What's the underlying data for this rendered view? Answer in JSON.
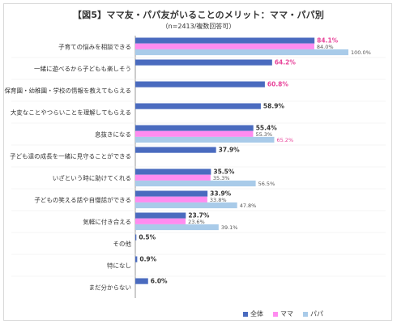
{
  "colors": {
    "overall": "#4a6bbf",
    "mama": "#ff8cf0",
    "papa": "#a9cbe9",
    "highlight": "#e8449a",
    "axis": "#999999"
  },
  "chart_data": {
    "type": "bar",
    "orientation": "horizontal",
    "title": "【図5】ママ友・パパ友がいることのメリット：ママ・パパ別",
    "subtitle": "（n=2413/複数回答可）",
    "xlim": [
      0,
      100
    ],
    "categories": [
      "子育ての悩みを相談できる",
      "一緒に遊べるから子どもも楽しそう",
      "保育園・幼稚園・学校の情報を教えてもらえる",
      "大変なことやつらいことを理解してもらえる",
      "息抜きになる",
      "子ども達の成長を一緒に見守ることができる",
      "いざという時に助けてくれる",
      "子どもの笑える話や自慢話ができる",
      "気軽に付き合える",
      "その他",
      "特になし",
      "まだ分からない"
    ],
    "series": [
      {
        "name": "全体",
        "values": [
          84.1,
          64.2,
          60.8,
          58.9,
          55.4,
          37.9,
          35.5,
          33.9,
          23.7,
          0.5,
          0.9,
          6.0
        ]
      },
      {
        "name": "ママ",
        "values": [
          84.0,
          null,
          null,
          null,
          55.3,
          null,
          35.3,
          33.8,
          23.6,
          null,
          null,
          null
        ]
      },
      {
        "name": "パパ",
        "values": [
          100.0,
          null,
          null,
          null,
          65.2,
          null,
          56.5,
          47.8,
          39.1,
          null,
          null,
          null
        ]
      }
    ],
    "data_labels": [
      [
        "84.1%",
        "84.0%",
        "100.0%"
      ],
      [
        "64.2%",
        "",
        ""
      ],
      [
        "60.8%",
        "",
        ""
      ],
      [
        "58.9%",
        "",
        ""
      ],
      [
        "55.4%",
        "55.3%",
        "65.2%"
      ],
      [
        "37.9%",
        "",
        ""
      ],
      [
        "35.5%",
        "35.3%",
        "56.5%"
      ],
      [
        "33.9%",
        "33.8%",
        "47.8%"
      ],
      [
        "23.7%",
        "23.6%",
        "39.1%"
      ],
      [
        "0.5%",
        "",
        ""
      ],
      [
        "0.9%",
        "",
        ""
      ],
      [
        "6.0%",
        "",
        ""
      ]
    ],
    "label_highlight_pink": [
      true,
      true,
      true,
      false,
      false,
      false,
      false,
      false,
      false,
      false,
      false,
      false
    ],
    "legend_position": "bottom-right",
    "grid": false
  },
  "legend": {
    "items": [
      "全体",
      "ママ",
      "パパ"
    ]
  }
}
